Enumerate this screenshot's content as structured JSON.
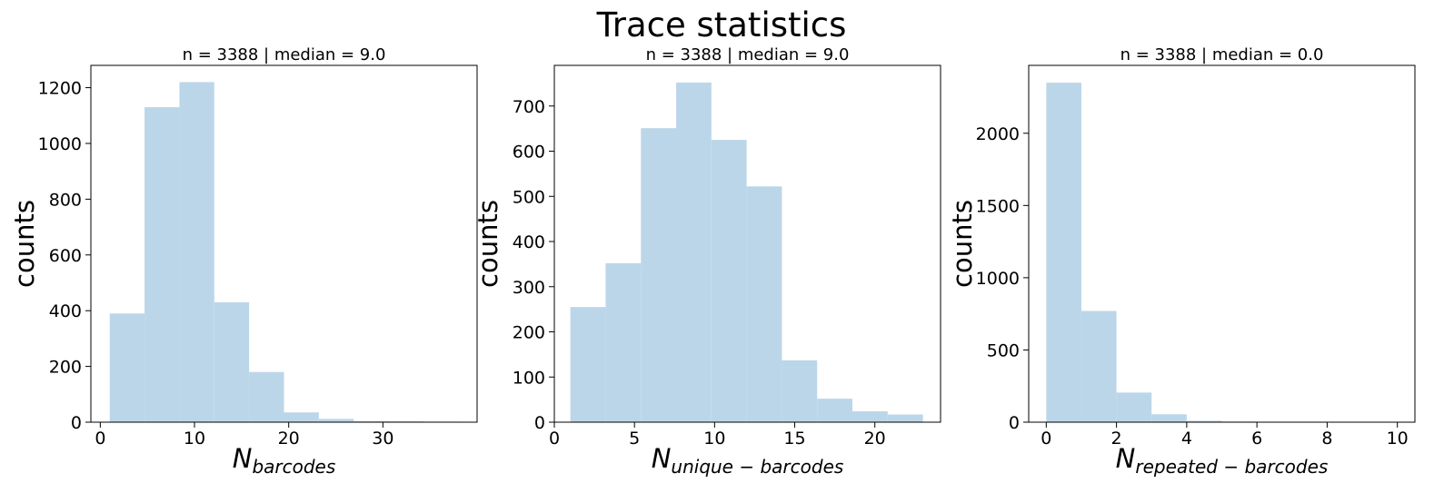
{
  "suptitle": "Trace statistics",
  "chart_data": [
    {
      "type": "bar",
      "subtitle": "n = 3388 | median = 9.0",
      "ylabel": "counts",
      "xlabel": {
        "main": "N",
        "sub": "barcodes"
      },
      "xlim": [
        -1,
        40
      ],
      "ylim": [
        0,
        1280
      ],
      "xticks": [
        0,
        10,
        20,
        30
      ],
      "yticks": [
        0,
        200,
        400,
        600,
        800,
        1000,
        1200
      ],
      "bin_edges": [
        1,
        4.7,
        8.4,
        12.1,
        15.8,
        19.5,
        23.2,
        26.9,
        30.6,
        34.3,
        38
      ],
      "values": [
        390,
        1130,
        1220,
        430,
        180,
        35,
        12,
        4,
        3,
        2
      ],
      "color": "#bcd6e9"
    },
    {
      "type": "bar",
      "subtitle": "n = 3388 | median = 9.0",
      "ylabel": "counts",
      "xlabel": {
        "main": "N",
        "sub": "unique − barcodes"
      },
      "xlim": [
        0,
        24.1
      ],
      "ylim": [
        0,
        790
      ],
      "xticks": [
        0,
        5,
        10,
        15,
        20
      ],
      "yticks": [
        0,
        100,
        200,
        300,
        400,
        500,
        600,
        700
      ],
      "bin_edges": [
        1,
        3.2,
        5.4,
        7.6,
        9.8,
        12,
        14.2,
        16.4,
        18.6,
        20.8,
        23
      ],
      "values": [
        255,
        352,
        651,
        752,
        625,
        522,
        137,
        52,
        24,
        17
      ],
      "color": "#bcd6e9"
    },
    {
      "type": "bar",
      "subtitle": "n = 3388 | median = 0.0",
      "ylabel": "counts",
      "xlabel": {
        "main": "N",
        "sub": "repeated − barcodes"
      },
      "xlim": [
        -0.5,
        10.5
      ],
      "ylim": [
        0,
        2470
      ],
      "xticks": [
        0,
        2,
        4,
        6,
        8,
        10
      ],
      "yticks": [
        0,
        500,
        1000,
        1500,
        2000
      ],
      "bin_edges": [
        0,
        1,
        2,
        3,
        4,
        5,
        6,
        7,
        8,
        9,
        10
      ],
      "values": [
        2350,
        770,
        205,
        55,
        10,
        4,
        2,
        2,
        1,
        1
      ],
      "color": "#bcd6e9"
    }
  ]
}
